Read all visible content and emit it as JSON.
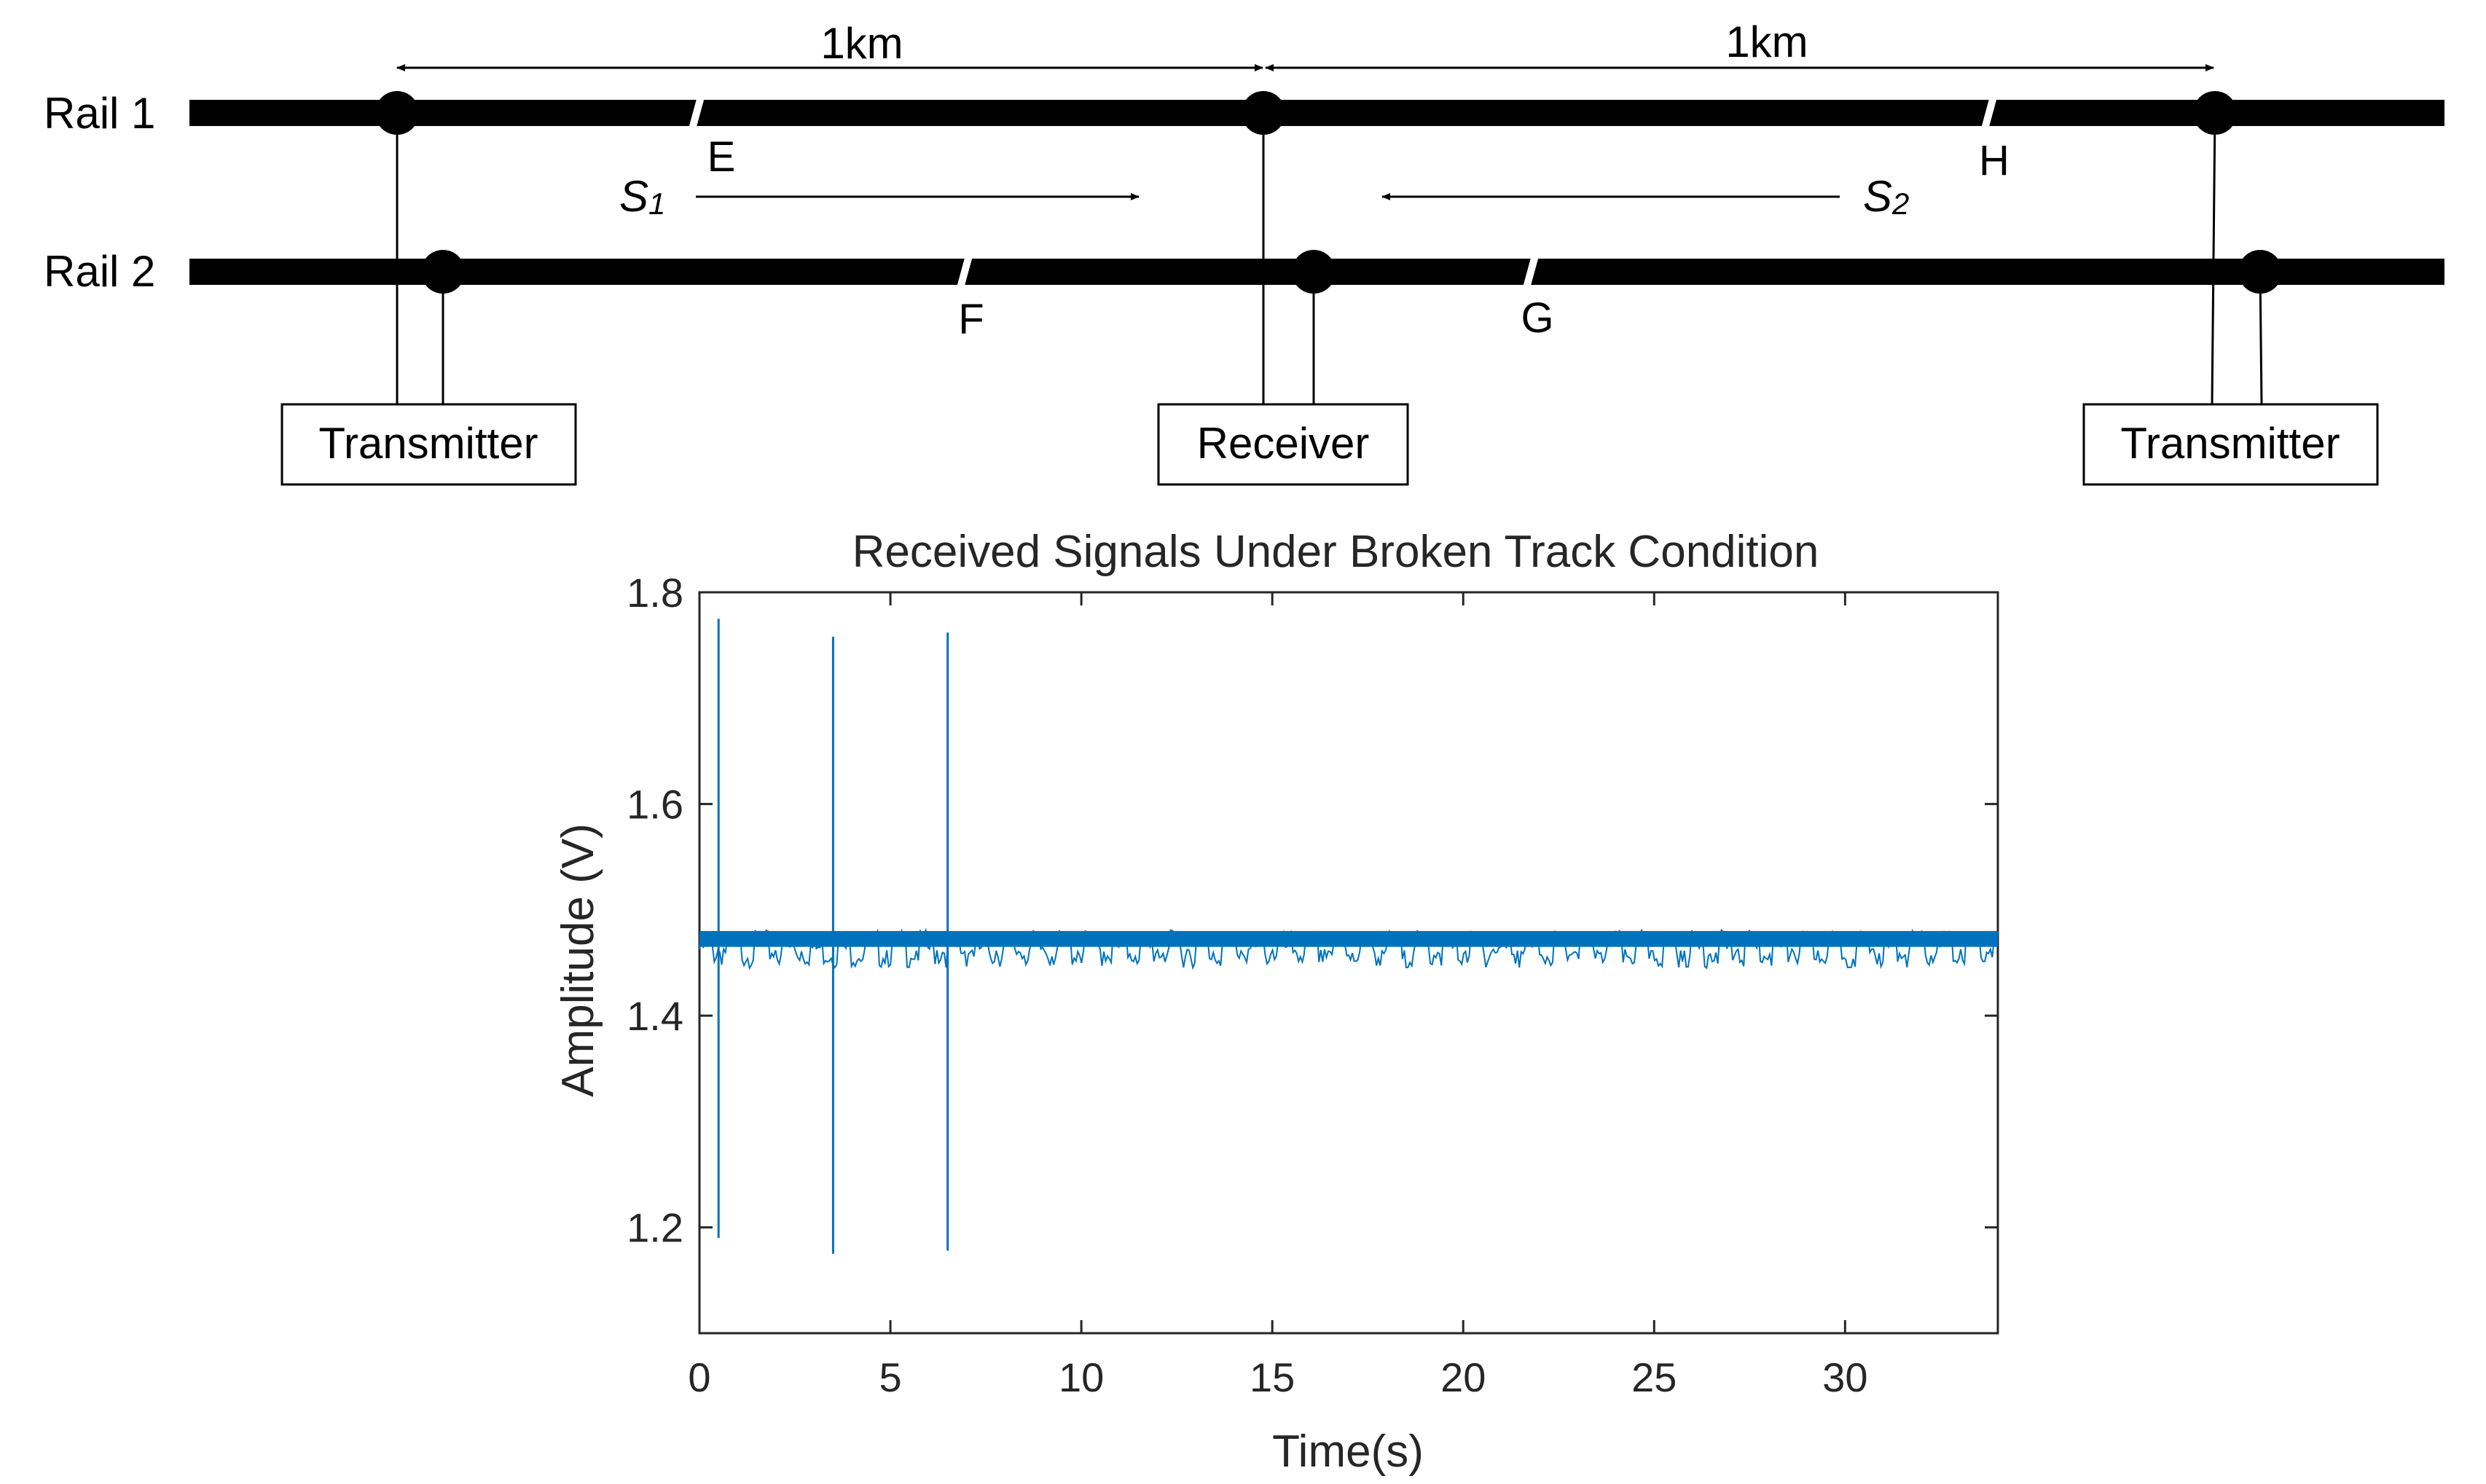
{
  "diagram": {
    "rails": [
      {
        "id": "rail1",
        "label": "Rail 1"
      },
      {
        "id": "rail2",
        "label": "Rail 2"
      }
    ],
    "distances": [
      {
        "label": "1km"
      },
      {
        "label": "1km"
      }
    ],
    "breaks": [
      {
        "label": "E",
        "rail": "rail1"
      },
      {
        "label": "F",
        "rail": "rail2"
      },
      {
        "label": "G",
        "rail": "rail2"
      },
      {
        "label": "H",
        "rail": "rail1"
      }
    ],
    "signals": [
      {
        "symbol": "S",
        "subscript": "1",
        "direction": "right"
      },
      {
        "symbol": "S",
        "subscript": "2",
        "direction": "left"
      }
    ],
    "devices": [
      {
        "label": "Transmitter"
      },
      {
        "label": "Receiver"
      },
      {
        "label": "Transmitter"
      }
    ]
  },
  "chart_data": {
    "type": "line",
    "title": "Received Signals Under Broken Track Condition",
    "xlabel": "Time(s)",
    "ylabel": "Amplitude (V)",
    "xlim": [
      0,
      34
    ],
    "ylim": [
      1.1,
      1.8
    ],
    "xticks": [
      0,
      5,
      10,
      15,
      20,
      25,
      30
    ],
    "yticks": [
      1.2,
      1.4,
      1.6,
      1.8
    ],
    "series": [
      {
        "color": "#0072BD",
        "baseline": 1.472,
        "noise_band": [
          1.465,
          1.48
        ],
        "spikes": [
          {
            "x": 0.5,
            "ymax": 1.775,
            "ymin": 1.19
          },
          {
            "x": 3.5,
            "ymax": 1.758,
            "ymin": 1.175
          },
          {
            "x": 6.5,
            "ymax": 1.762,
            "ymin": 1.178
          }
        ]
      }
    ],
    "grid": false,
    "legend": "none"
  }
}
